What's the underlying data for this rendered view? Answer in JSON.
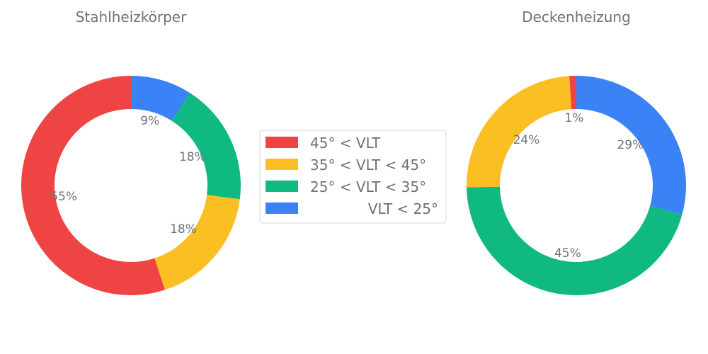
{
  "chart_data": [
    {
      "type": "pie",
      "variant": "donut",
      "title": "Stahlheizkörper",
      "slices": [
        {
          "label": "VLT < 25°",
          "value": 9,
          "display": "9%"
        },
        {
          "label": "25° < VLT < 35°",
          "value": 18,
          "display": "18%"
        },
        {
          "label": "35° < VLT < 45°",
          "value": 18,
          "display": "18%"
        },
        {
          "label": "45° < VLT",
          "value": 55,
          "display": "55%"
        }
      ]
    },
    {
      "type": "pie",
      "variant": "donut",
      "title": "Deckenheizung",
      "slices": [
        {
          "label": "VLT < 25°",
          "value": 29,
          "display": "29%"
        },
        {
          "label": "25° < VLT < 35°",
          "value": 45,
          "display": "45%"
        },
        {
          "label": "35° < VLT < 45°",
          "value": 24,
          "display": "24%"
        },
        {
          "label": "45° < VLT",
          "value": 1,
          "display": "1%"
        }
      ]
    }
  ],
  "legend": {
    "placement": "center",
    "entries": [
      {
        "label": "45° < VLT",
        "color": "#ef4444"
      },
      {
        "label": "35° < VLT < 45°",
        "color": "#fbbf24"
      },
      {
        "label": "25° < VLT < 35°",
        "color": "#10b981"
      },
      {
        "label": "VLT < 25°",
        "color": "#3b82f6"
      }
    ]
  },
  "colors": {
    "VLT < 25°": "#3b82f6",
    "25° < VLT < 35°": "#10b981",
    "35° < VLT < 45°": "#fbbf24",
    "45° < VLT": "#ef4444"
  }
}
